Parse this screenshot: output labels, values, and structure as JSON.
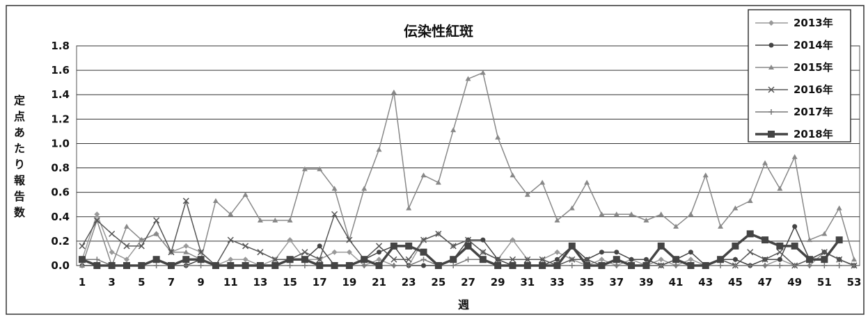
{
  "chart_data": {
    "type": "line",
    "title": "伝染性紅斑",
    "xlabel": "週",
    "ylabel": "定点あたり報告数",
    "x": [
      1,
      2,
      3,
      4,
      5,
      6,
      7,
      8,
      9,
      10,
      11,
      12,
      13,
      14,
      15,
      16,
      17,
      18,
      19,
      20,
      21,
      22,
      23,
      24,
      25,
      26,
      27,
      28,
      29,
      30,
      31,
      32,
      33,
      34,
      35,
      36,
      37,
      38,
      39,
      40,
      41,
      42,
      43,
      44,
      45,
      46,
      47,
      48,
      49,
      50,
      51,
      52,
      53
    ],
    "x_tick_labels": [
      "1",
      "3",
      "5",
      "7",
      "9",
      "11",
      "13",
      "15",
      "17",
      "19",
      "21",
      "23",
      "25",
      "27",
      "29",
      "31",
      "33",
      "35",
      "37",
      "39",
      "41",
      "43",
      "45",
      "47",
      "49",
      "51",
      "53"
    ],
    "ylim": [
      0,
      1.8
    ],
    "y_tick_labels": [
      "0.0",
      "0.2",
      "0.4",
      "0.6",
      "0.8",
      "1.0",
      "1.2",
      "1.4",
      "1.6",
      "1.8"
    ],
    "grid": "horizontal",
    "legend_position": "top-right",
    "series": [
      {
        "name": "2013年",
        "marker": "diamond",
        "color": "#999999",
        "values": [
          0.05,
          0.42,
          0.11,
          0.05,
          0.21,
          0.26,
          0.11,
          0.16,
          0.11,
          0.0,
          0.05,
          0.05,
          0.0,
          0.05,
          0.21,
          0.05,
          0.05,
          0.11,
          0.11,
          0.0,
          0.05,
          0.0,
          0.0,
          0.21,
          0.26,
          0.16,
          0.21,
          0.11,
          0.05,
          0.21,
          0.05,
          0.05,
          0.11,
          0.05,
          0.0,
          0.05,
          0.0,
          0.05,
          0.0,
          0.05,
          0.0,
          0.05,
          0.0,
          0.05,
          0.05,
          0.0,
          0.0,
          0.05,
          0.0,
          0.0,
          0.11,
          0.05,
          0.0
        ]
      },
      {
        "name": "2014年",
        "marker": "circle",
        "color": "#444444",
        "values": [
          0.0,
          0.0,
          0.0,
          0.0,
          0.0,
          0.05,
          0.0,
          0.0,
          0.05,
          0.0,
          0.0,
          0.0,
          0.0,
          0.0,
          0.05,
          0.05,
          0.16,
          0.0,
          0.0,
          0.05,
          0.11,
          0.16,
          0.0,
          0.0,
          0.0,
          0.05,
          0.21,
          0.21,
          0.05,
          0.0,
          0.0,
          0.0,
          0.05,
          0.16,
          0.05,
          0.11,
          0.11,
          0.05,
          0.05,
          0.0,
          0.05,
          0.11,
          0.0,
          0.05,
          0.05,
          0.0,
          0.05,
          0.05,
          0.32,
          0.05,
          0.11,
          0.05,
          0.0
        ]
      },
      {
        "name": "2015年",
        "marker": "triangle",
        "color": "#888888",
        "values": [
          0.0,
          0.37,
          0.0,
          0.32,
          0.21,
          0.26,
          0.11,
          0.11,
          0.05,
          0.53,
          0.42,
          0.58,
          0.37,
          0.37,
          0.37,
          0.79,
          0.79,
          0.63,
          0.21,
          0.63,
          0.95,
          1.42,
          0.47,
          0.74,
          0.68,
          1.11,
          1.53,
          1.58,
          1.05,
          0.74,
          0.58,
          0.68,
          0.37,
          0.47,
          0.68,
          0.42,
          0.42,
          0.42,
          0.37,
          0.42,
          0.32,
          0.42,
          0.74,
          0.32,
          0.47,
          0.53,
          0.84,
          0.63,
          0.89,
          0.21,
          0.26,
          0.47,
          0.05
        ]
      },
      {
        "name": "2016年",
        "marker": "x",
        "color": "#555555",
        "values": [
          0.16,
          0.37,
          0.26,
          0.16,
          0.16,
          0.37,
          0.11,
          0.53,
          0.11,
          0.0,
          0.21,
          0.16,
          0.11,
          0.05,
          0.05,
          0.11,
          0.05,
          0.42,
          0.21,
          0.05,
          0.16,
          0.05,
          0.05,
          0.21,
          0.26,
          0.16,
          0.21,
          0.11,
          0.05,
          0.05,
          0.05,
          0.05,
          0.0,
          0.05,
          0.05,
          0.0,
          0.05,
          0.0,
          0.0,
          0.0,
          0.05,
          0.0,
          0.0,
          0.05,
          0.0,
          0.11,
          0.05,
          0.11,
          0.0,
          0.05,
          0.11,
          0.05,
          0.0
        ]
      },
      {
        "name": "2017年",
        "marker": "plus",
        "color": "#777777",
        "values": [
          0.05,
          0.05,
          0.0,
          0.0,
          0.0,
          0.0,
          0.0,
          0.0,
          0.0,
          0.0,
          0.0,
          0.0,
          0.0,
          0.0,
          0.0,
          0.0,
          0.0,
          0.0,
          0.0,
          0.0,
          0.0,
          0.0,
          0.0,
          0.05,
          0.0,
          0.0,
          0.05,
          0.05,
          0.0,
          0.0,
          0.0,
          0.0,
          0.0,
          0.0,
          0.0,
          0.0,
          0.0,
          0.0,
          0.0,
          0.0,
          0.0,
          0.0,
          0.0,
          0.0,
          0.0,
          0.0,
          0.0,
          0.0,
          0.0,
          0.0,
          0.0,
          0.0,
          0.0
        ]
      },
      {
        "name": "2018年",
        "marker": "square",
        "color": "#444444",
        "bold": true,
        "values": [
          0.05,
          0.0,
          0.0,
          0.0,
          0.0,
          0.05,
          0.0,
          0.05,
          0.05,
          0.0,
          0.0,
          0.0,
          0.0,
          0.0,
          0.05,
          0.05,
          0.0,
          0.0,
          0.0,
          0.05,
          0.0,
          0.16,
          0.16,
          0.11,
          0.0,
          0.05,
          0.16,
          0.05,
          0.0,
          0.0,
          0.0,
          0.0,
          0.0,
          0.16,
          0.0,
          0.0,
          0.05,
          0.0,
          0.0,
          0.16,
          0.05,
          0.0,
          0.0,
          0.05,
          0.16,
          0.26,
          0.21,
          0.16,
          0.16,
          0.05,
          0.05,
          0.21,
          null
        ]
      }
    ]
  }
}
